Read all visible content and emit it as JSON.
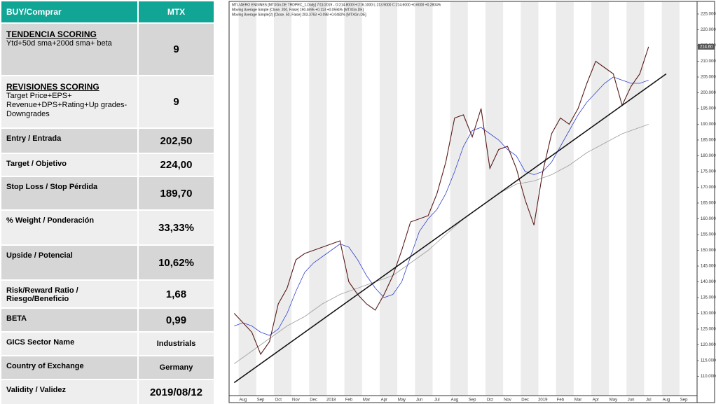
{
  "table": {
    "header": [
      "BUY/Comprar",
      "MTX"
    ],
    "rows": [
      {
        "label": "TENDENCIA  SCORING",
        "sublabel": "Ytd+50d  sma+200d  sma+  beta",
        "value": "9"
      },
      {
        "label": "REVISIONES  SCORING",
        "sublabel": "Target  Price+EPS+ Revenue+DPS+Rating+Up grades-Downgrades",
        "value": "9"
      },
      {
        "label": "Entry / Entrada",
        "value": "202,50"
      },
      {
        "label": "Target / Objetivo",
        "value": "224,00"
      },
      {
        "label": "Stop Loss / Stop Pérdida",
        "value": "189,70"
      },
      {
        "label": "% Weight / Ponderación",
        "value": "33,33%"
      },
      {
        "label": "Upside  / Potencial",
        "value": "10,62%"
      },
      {
        "label": "Risk/Reward Ratio / Riesgo/Beneficio",
        "value": "1,68"
      },
      {
        "label": "BETA",
        "value": "0,99"
      },
      {
        "label": "GICS  Sector Name",
        "value": "Industrials"
      },
      {
        "label": "Country of Exchange",
        "value": "Germany"
      },
      {
        "label": "Validity  / Validez",
        "value": "2019/08/12"
      }
    ]
  },
  "chart_data": {
    "type": "line",
    "legend": [
      "MTU AERO ENGINES [MTXGn.DE TRDPRC_1.Daily] 7/11/2019 - O:214.8000 H:216.1000 L:213.9000 C:214.6000 +0.6000 +0.2804%",
      "Moving Average Simple [Close, 200, False] 190.4695 +0.113 +0.0594% [MTXGn.DE]",
      "Moving Average Simple(2) [Close, 50, False] 203.3763 +0.098 +0.0482% [MTXGn.DE]"
    ],
    "last_price": 214.6,
    "last_price_label": "214.60",
    "categories": [
      null,
      "Aug",
      null,
      "Sep",
      null,
      "Oct",
      null,
      "Nov",
      null,
      "Dec",
      null,
      "2018",
      null,
      "Feb",
      null,
      "Mar",
      null,
      "Apr",
      null,
      "May",
      null,
      "Jun",
      null,
      "Jul",
      null,
      "Aug",
      null,
      "Sep",
      null,
      "Oct",
      null,
      "Nov",
      null,
      "Dec",
      null,
      "2019",
      null,
      "Feb",
      null,
      "Mar",
      null,
      "Apr",
      null,
      "May",
      null,
      "Jun",
      null,
      "Jul",
      null,
      "Aug",
      null,
      "Sep",
      null
    ],
    "series": [
      {
        "color": "#9e9e9e",
        "values": [
          114,
          116,
          118,
          120,
          122,
          124,
          126,
          127.5,
          129,
          131,
          133,
          134.5,
          136,
          137,
          138,
          139,
          140,
          141,
          142,
          144,
          146,
          148,
          150,
          152.5,
          155,
          157.5,
          160,
          162,
          164,
          166,
          168,
          169.5,
          171,
          171.5,
          172,
          173,
          174,
          175.5,
          177,
          179,
          181,
          182.5,
          184,
          185.5,
          187,
          188,
          189,
          190,
          null,
          null,
          null,
          null,
          null
        ]
      },
      {
        "color": "#3344cc",
        "values": [
          126,
          127,
          126,
          124,
          123,
          125,
          130,
          137,
          143,
          146,
          148,
          150,
          152,
          151,
          147,
          142,
          138,
          135,
          136,
          140,
          148,
          156,
          160,
          163,
          168,
          175,
          183,
          188,
          189,
          187,
          185,
          182,
          180,
          175,
          174,
          175,
          178,
          183,
          188,
          193,
          197,
          200,
          203,
          205,
          204,
          203,
          203,
          204,
          null,
          null,
          null,
          null,
          null
        ]
      },
      {
        "color": "#5a1a1a",
        "values": [
          130,
          127,
          124,
          117,
          121,
          133,
          138,
          147,
          149,
          150,
          151,
          152,
          153,
          140,
          136,
          133,
          131,
          136,
          142,
          150,
          159,
          160,
          161,
          168,
          178,
          192,
          193,
          186,
          195,
          176,
          182,
          183,
          176,
          166,
          158,
          175,
          187,
          192,
          190,
          195,
          203,
          210,
          208,
          206,
          196,
          202,
          206,
          214.6,
          null,
          null,
          null,
          null,
          null
        ]
      },
      {
        "color": "#111111",
        "values": [
          108,
          110,
          112,
          114,
          116,
          118,
          120,
          122,
          124,
          126,
          128,
          130,
          132,
          134,
          136,
          138,
          140,
          142,
          144,
          146,
          148,
          150,
          152,
          154,
          156,
          158,
          160,
          162,
          164,
          166,
          168,
          170,
          172,
          174,
          176,
          178,
          180,
          182,
          184,
          186,
          188,
          190,
          192,
          194,
          196,
          198,
          200,
          202,
          204,
          206,
          null,
          null,
          null
        ]
      }
    ],
    "ylim": [
      103,
      228
    ],
    "yticks": [
      110,
      115,
      120,
      125,
      130,
      135,
      140,
      145,
      150,
      155,
      160,
      165,
      170,
      175,
      180,
      185,
      190,
      195,
      200,
      205,
      210,
      215,
      220,
      225
    ],
    "ytick_labels": [
      "110.0000",
      "115.0000",
      "120.0000",
      "125.0000",
      "130.0000",
      "135.0000",
      "140.0000",
      "145.0000",
      "150.0000",
      "155.0000",
      "160.0000",
      "165.0000",
      "170.0000",
      "175.0000",
      "180.0000",
      "185.0000",
      "190.0000",
      "195.0000",
      "200.0000",
      "205.0000",
      "210.0000",
      "215.0000",
      "220.0000",
      "225.0000"
    ],
    "grid": false
  }
}
